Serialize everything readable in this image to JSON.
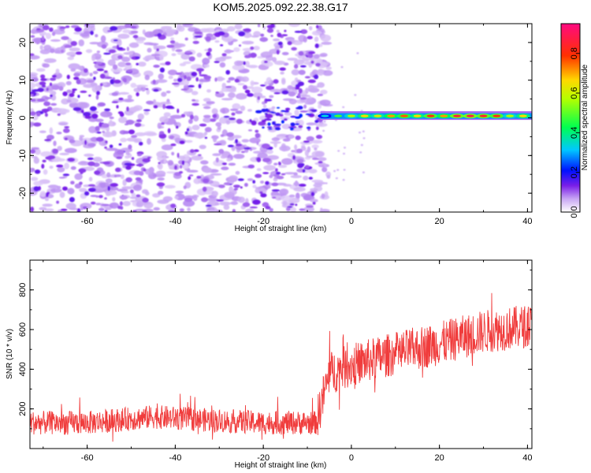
{
  "title": "KOM5.2025.092.22.38.G17",
  "chart_data": [
    {
      "type": "heatmap",
      "xlabel": "Height of straight line (km)",
      "ylabel": "Frequency (Hz)",
      "xlim": [
        -73,
        41
      ],
      "ylim": [
        -25,
        25
      ],
      "xticks": [
        -60,
        -40,
        -20,
        0,
        20,
        40
      ],
      "yticks": [
        -20,
        -10,
        0,
        10,
        20
      ],
      "colorbar": {
        "label": "Normalized spectral amplitude",
        "ticks": [
          "0.0",
          "0.2",
          "0.4",
          "0.6",
          "0.8"
        ],
        "range": [
          0,
          0.95
        ]
      },
      "description_values": {
        "noise_region_x": [
          -73,
          -7
        ],
        "signal_band_x": [
          -7,
          41
        ],
        "signal_band_frequency": 0.5
      },
      "signal_band": [
        {
          "x": -6,
          "v": 0.35
        },
        {
          "x": -3,
          "v": 0.5
        },
        {
          "x": 0,
          "v": 0.6
        },
        {
          "x": 3,
          "v": 0.7
        },
        {
          "x": 6,
          "v": 0.65
        },
        {
          "x": 9,
          "v": 0.75
        },
        {
          "x": 12,
          "v": 0.8
        },
        {
          "x": 15,
          "v": 0.7
        },
        {
          "x": 18,
          "v": 0.85
        },
        {
          "x": 21,
          "v": 0.75
        },
        {
          "x": 24,
          "v": 0.9
        },
        {
          "x": 27,
          "v": 0.92
        },
        {
          "x": 30,
          "v": 0.88
        },
        {
          "x": 33,
          "v": 0.85
        },
        {
          "x": 36,
          "v": 0.6
        },
        {
          "x": 39,
          "v": 0.7
        }
      ]
    },
    {
      "type": "line",
      "xlabel": "Height of straight line (km)",
      "ylabel": "SNR (10 * v/v)",
      "xlim": [
        -73,
        41
      ],
      "ylim": [
        0,
        950
      ],
      "xticks": [
        -60,
        -40,
        -20,
        0,
        20,
        40
      ],
      "yticks": [
        200,
        400,
        600,
        800
      ],
      "color": "#f03c3c",
      "trend": [
        {
          "x": -73,
          "y": 130
        },
        {
          "x": -60,
          "y": 130
        },
        {
          "x": -45,
          "y": 160
        },
        {
          "x": -30,
          "y": 140
        },
        {
          "x": -20,
          "y": 130
        },
        {
          "x": -8,
          "y": 130
        },
        {
          "x": -5,
          "y": 380
        },
        {
          "x": 0,
          "y": 420
        },
        {
          "x": 10,
          "y": 480
        },
        {
          "x": 20,
          "y": 530
        },
        {
          "x": 30,
          "y": 590
        },
        {
          "x": 41,
          "y": 620
        }
      ]
    }
  ]
}
